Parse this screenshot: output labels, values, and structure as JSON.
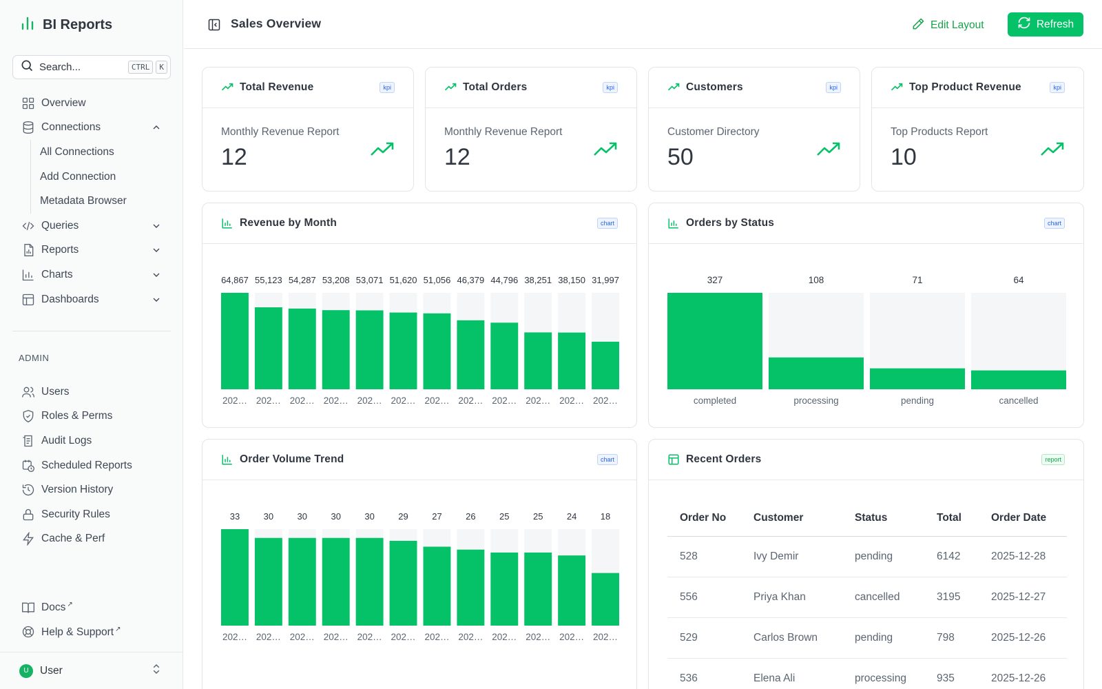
{
  "app": {
    "title": "BI Reports"
  },
  "search": {
    "placeholder": "Search...",
    "kbd_ctrl": "CTRL",
    "kbd_k": "K"
  },
  "nav": {
    "items": [
      {
        "label": "Overview",
        "icon": "grid-icon"
      },
      {
        "label": "Connections",
        "icon": "database-icon",
        "expanded": true,
        "children": [
          "All Connections",
          "Add Connection",
          "Metadata Browser"
        ]
      },
      {
        "label": "Queries",
        "icon": "code-icon"
      },
      {
        "label": "Reports",
        "icon": "report-icon"
      },
      {
        "label": "Charts",
        "icon": "bar-chart-icon"
      },
      {
        "label": "Dashboards",
        "icon": "layout-icon"
      }
    ],
    "admin_label": "ADMIN",
    "admin_items": [
      {
        "label": "Users",
        "icon": "users-icon"
      },
      {
        "label": "Roles & Perms",
        "icon": "shield-icon"
      },
      {
        "label": "Audit Logs",
        "icon": "log-icon"
      },
      {
        "label": "Scheduled Reports",
        "icon": "calendar-clock-icon"
      },
      {
        "label": "Version History",
        "icon": "history-icon"
      },
      {
        "label": "Security Rules",
        "icon": "lock-icon"
      },
      {
        "label": "Cache & Perf",
        "icon": "lightning-icon"
      }
    ],
    "footer_items": [
      {
        "label": "Docs",
        "icon": "book-icon"
      },
      {
        "label": "Help & Support",
        "icon": "lifebuoy-icon"
      }
    ]
  },
  "user": {
    "initial": "U",
    "name": "User"
  },
  "header": {
    "title": "Sales Overview",
    "edit_label": "Edit Layout",
    "refresh_label": "Refresh"
  },
  "colors": {
    "accent": "#05c168",
    "accent_dark": "#16a34a",
    "bar": "#05c168",
    "bar_bg": "#f5f6f7"
  },
  "kpis": [
    {
      "title": "Total Revenue",
      "tag": "kpi",
      "subtitle": "Monthly Revenue Report",
      "value": "12"
    },
    {
      "title": "Total Orders",
      "tag": "kpi",
      "subtitle": "Monthly Revenue Report",
      "value": "12"
    },
    {
      "title": "Customers",
      "tag": "kpi",
      "subtitle": "Customer Directory",
      "value": "50"
    },
    {
      "title": "Top Product Revenue",
      "tag": "kpi",
      "subtitle": "Top Products Report",
      "value": "10"
    }
  ],
  "panels": {
    "revenue": {
      "title": "Revenue by Month",
      "tag": "chart"
    },
    "status": {
      "title": "Orders by Status",
      "tag": "chart"
    },
    "volume": {
      "title": "Order Volume Trend",
      "tag": "chart"
    },
    "recent": {
      "title": "Recent Orders",
      "tag": "report"
    }
  },
  "chart_data": [
    {
      "type": "bar",
      "title": "Revenue by Month",
      "categories": [
        "202…",
        "202…",
        "202…",
        "202…",
        "202…",
        "202…",
        "202…",
        "202…",
        "202…",
        "202…",
        "202…",
        "202…"
      ],
      "values": [
        64867,
        55123,
        54287,
        53208,
        53071,
        51620,
        51056,
        46379,
        44796,
        38251,
        38150,
        31997
      ],
      "labels": [
        "64,867",
        "55,123",
        "54,287",
        "53,208",
        "53,071",
        "51,620",
        "51,056",
        "46,379",
        "44,796",
        "38,251",
        "38,150",
        "31,997"
      ],
      "ylim": [
        0,
        64867
      ]
    },
    {
      "type": "bar",
      "title": "Orders by Status",
      "categories": [
        "completed",
        "processing",
        "pending",
        "cancelled"
      ],
      "values": [
        327,
        108,
        71,
        64
      ],
      "labels": [
        "327",
        "108",
        "71",
        "64"
      ],
      "ylim": [
        0,
        327
      ]
    },
    {
      "type": "bar",
      "title": "Order Volume Trend",
      "categories": [
        "202…",
        "202…",
        "202…",
        "202…",
        "202…",
        "202…",
        "202…",
        "202…",
        "202…",
        "202…",
        "202…",
        "202…"
      ],
      "values": [
        33,
        30,
        30,
        30,
        30,
        29,
        27,
        26,
        25,
        25,
        24,
        18
      ],
      "labels": [
        "33",
        "30",
        "30",
        "30",
        "30",
        "29",
        "27",
        "26",
        "25",
        "25",
        "24",
        "18"
      ],
      "ylim": [
        0,
        33
      ]
    }
  ],
  "orders": {
    "columns": [
      "Order No",
      "Customer",
      "Status",
      "Total",
      "Order Date"
    ],
    "rows": [
      [
        "528",
        "Ivy Demir",
        "pending",
        "6142",
        "2025-12-28"
      ],
      [
        "556",
        "Priya Khan",
        "cancelled",
        "3195",
        "2025-12-27"
      ],
      [
        "529",
        "Carlos Brown",
        "pending",
        "798",
        "2025-12-26"
      ],
      [
        "536",
        "Elena Ali",
        "processing",
        "935",
        "2025-12-26"
      ]
    ]
  }
}
